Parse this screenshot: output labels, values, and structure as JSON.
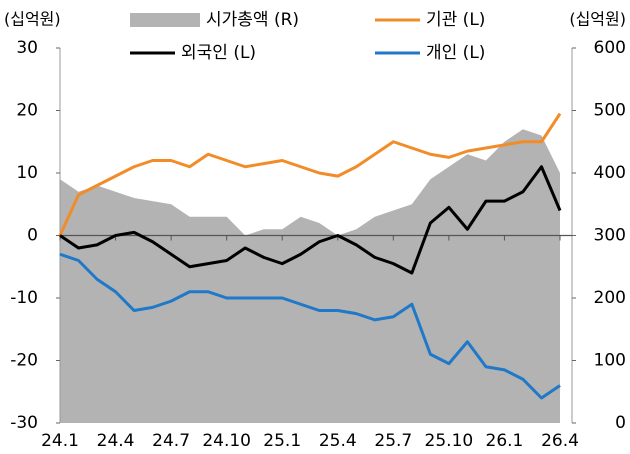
{
  "chart_data": {
    "type": "line",
    "y_unit_label": "(십억원)",
    "y2_unit_label": "(십억원)",
    "categories": [
      "24.1",
      null,
      null,
      "24.4",
      null,
      null,
      "24.7",
      null,
      null,
      "24.10",
      null,
      null,
      "25.1",
      null,
      null,
      "25.4",
      null,
      null,
      "25.7",
      null,
      null,
      "25.10",
      null,
      null,
      "26.1",
      null,
      null,
      "26.4"
    ],
    "series": [
      {
        "name": "시가총액 (R)",
        "type": "area",
        "axis": "y2",
        "color": "#b3b3b3",
        "values": [
          390,
          370,
          380,
          370,
          360,
          355,
          350,
          330,
          330,
          330,
          300,
          310,
          310,
          330,
          320,
          300,
          310,
          330,
          340,
          350,
          390,
          410,
          430,
          420,
          450,
          470,
          460,
          400
        ]
      },
      {
        "name": "기관 (L)",
        "type": "line",
        "color": "#f28c28",
        "values": [
          0,
          6.5,
          8,
          9.5,
          11,
          12,
          12,
          11,
          13,
          12,
          11,
          11.5,
          12,
          11,
          10,
          9.5,
          11,
          13,
          15,
          14,
          13,
          12.5,
          13.5,
          14,
          14.5,
          15,
          15,
          19.5
        ]
      },
      {
        "name": "외국인 (L)",
        "type": "line",
        "color": "#000000",
        "values": [
          0,
          -2,
          -1.5,
          0,
          0.5,
          -1,
          -3,
          -5,
          -4.5,
          -4,
          -2,
          -3.5,
          -4.5,
          -3,
          -1,
          0,
          -1.5,
          -3.5,
          -4.5,
          -6,
          2,
          4.5,
          1,
          5.5,
          5.5,
          7,
          11,
          4
        ]
      },
      {
        "name": "개인 (L)",
        "type": "line",
        "color": "#1f78c8",
        "values": [
          -3,
          -4,
          -7,
          -9,
          -12,
          -11.5,
          -10.5,
          -9,
          -9,
          -10,
          -10,
          -10,
          -10,
          -11,
          -12,
          -12,
          -12.5,
          -13.5,
          -13,
          -11,
          -19,
          -20.5,
          -17,
          -21,
          -21.5,
          -23,
          -26,
          -24
        ]
      }
    ],
    "ylim": [
      -30,
      30
    ],
    "yticks": [
      -30,
      -20,
      -10,
      0,
      10,
      20,
      30
    ],
    "y2lim": [
      0,
      600
    ],
    "y2ticks": [
      0,
      100,
      200,
      300,
      400,
      500,
      600
    ]
  }
}
